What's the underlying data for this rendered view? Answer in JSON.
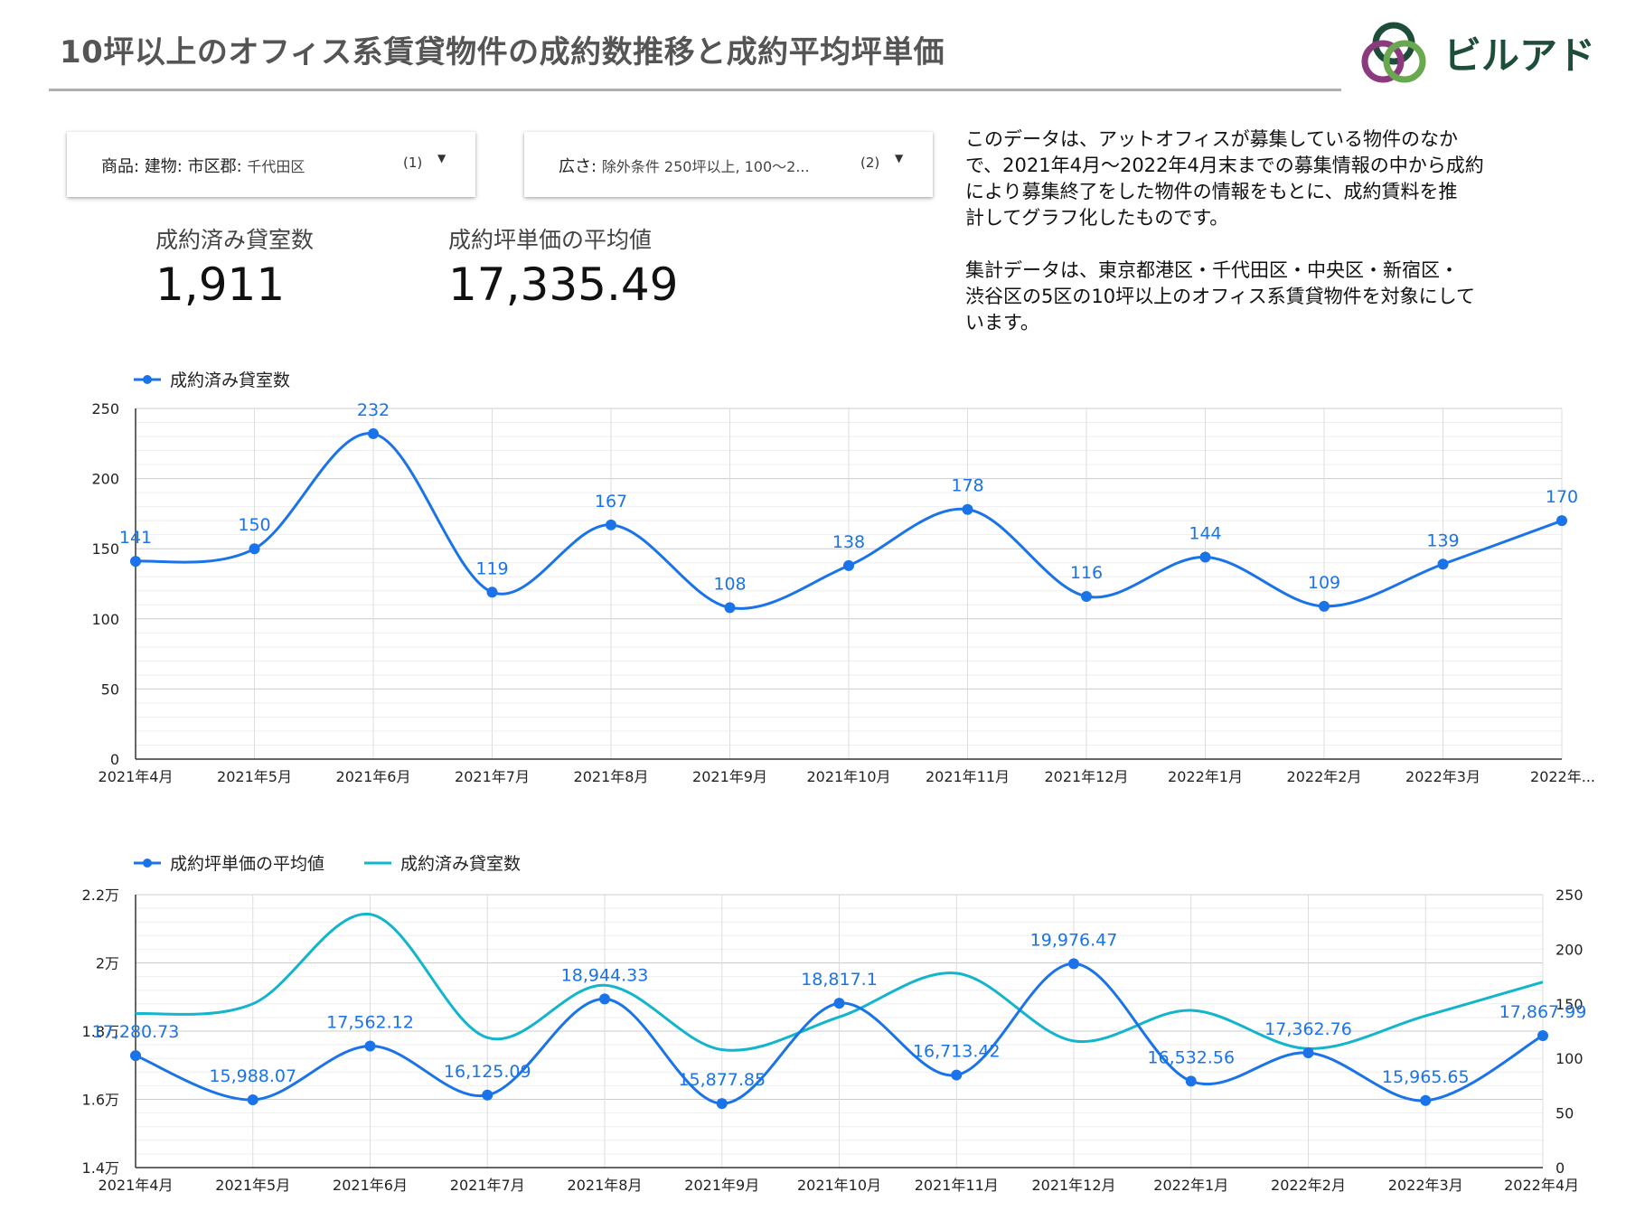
{
  "page": {
    "title": "10坪以上のオフィス系賃貸物件の成約数推移と成約平均坪単価",
    "brand": "ビルアド",
    "colors": {
      "accent_blue": "#1a73e8",
      "accent_teal": "#12b5cb",
      "title_gray": "#555555"
    }
  },
  "filters": [
    {
      "label": "商品: 建物: 市区郡:",
      "value": "千代田区",
      "count": "(1)",
      "icon": "dropdown-arrow-icon"
    },
    {
      "label": "広さ:",
      "value": "除外条件 250坪以上, 100〜2...",
      "count": "(2)",
      "icon": "dropdown-arrow-icon"
    }
  ],
  "kpis": [
    {
      "label": "成約済み貸室数",
      "value": "1,911"
    },
    {
      "label": "成約坪単価の平均値",
      "value": "17,335.49"
    }
  ],
  "note": {
    "paragraph1": "このデータは、アットオフィスが募集している物件のなか\nで、2021年4月〜2022年4月末までの募集情報の中から成約\nにより募集終了をした物件の情報をもとに、成約賃料を推\n計してグラフ化したものです。",
    "paragraph2": "集計データは、東京都港区・千代田区・中央区・新宿区・\n渋谷区の5区の10坪以上のオフィス系賃貸物件を対象にして\nいます。"
  },
  "chart_data": [
    {
      "type": "line",
      "title": "",
      "xlabel": "",
      "ylabel": "",
      "categories": [
        "2021年4月",
        "2021年5月",
        "2021年6月",
        "2021年7月",
        "2021年8月",
        "2021年9月",
        "2021年10月",
        "2021年11月",
        "2021年12月",
        "2022年1月",
        "2022年2月",
        "2022年3月",
        "2022年..."
      ],
      "series": [
        {
          "name": "成約済み貸室数",
          "color": "#1a73e8",
          "values": [
            141,
            150,
            232,
            119,
            167,
            108,
            138,
            178,
            116,
            144,
            109,
            139,
            170
          ],
          "labels": [
            "141",
            "150",
            "232",
            "119",
            "167",
            "108",
            "138",
            "178",
            "116",
            "144",
            "109",
            "139",
            "170"
          ]
        }
      ],
      "ylim": [
        0,
        250
      ],
      "yticks": [
        0,
        50,
        100,
        150,
        200,
        250
      ],
      "ytick_labels": [
        "0",
        "50",
        "100",
        "150",
        "200",
        "250"
      ],
      "grid": true,
      "smooth": true,
      "legend": "top-left"
    },
    {
      "type": "line",
      "title": "",
      "xlabel": "",
      "ylabel": "",
      "categories": [
        "2021年4月",
        "2021年5月",
        "2021年6月",
        "2021年7月",
        "2021年8月",
        "2021年9月",
        "2021年10月",
        "2021年11月",
        "2021年12月",
        "2022年1月",
        "2022年2月",
        "2022年3月",
        "2022年4月"
      ],
      "series": [
        {
          "name": "成約坪単価の平均値",
          "color": "#1a73e8",
          "axis": "left",
          "markers": true,
          "values": [
            17280.73,
            15988.07,
            17562.12,
            16125.09,
            18944.33,
            15877.85,
            18817.1,
            16713.42,
            19976.47,
            16532.56,
            17362.76,
            15965.65,
            17867.99
          ],
          "labels": [
            "17,280.73",
            "15,988.07",
            "17,562.12",
            "16,125.09",
            "18,944.33",
            "15,877.85",
            "18,817.1",
            "16,713.42",
            "19,976.47",
            "16,532.56",
            "17,362.76",
            "15,965.65",
            "17,867.99"
          ]
        },
        {
          "name": "成約済み貸室数",
          "color": "#12b5cb",
          "axis": "right",
          "markers": false,
          "values": [
            141,
            150,
            232,
            119,
            167,
            108,
            138,
            178,
            116,
            144,
            109,
            139,
            170
          ]
        }
      ],
      "ylim_left": [
        14000,
        22000
      ],
      "yticks_left": [
        14000,
        16000,
        18000,
        20000,
        22000
      ],
      "ytick_labels_left": [
        "1.4万",
        "1.6万",
        "1.8万",
        "2万",
        "2.2万"
      ],
      "ylim_right": [
        0,
        250
      ],
      "yticks_right": [
        0,
        50,
        100,
        150,
        200,
        250
      ],
      "ytick_labels_right": [
        "0",
        "50",
        "100",
        "150",
        "200",
        "250"
      ],
      "grid": true,
      "smooth": true,
      "legend": "top-left"
    }
  ]
}
